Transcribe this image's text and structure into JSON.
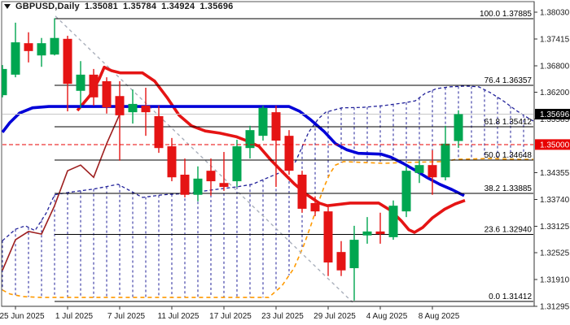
{
  "title": {
    "symbol_period": "GBPUSD,Daily",
    "open": "1.35081",
    "high": "1.35784",
    "low": "1.34924",
    "close": "1.35696"
  },
  "price_axis": {
    "labels": [
      "1.38030",
      "1.37415",
      "1.36800",
      "1.36200",
      "1.35585",
      "1.34355",
      "1.33740",
      "1.33125",
      "1.32525",
      "1.31910",
      "1.31295"
    ],
    "current_badge": {
      "text": "1.35696",
      "price": 1.35696
    },
    "alert_badge": {
      "text": "1.35000",
      "price": 1.35
    }
  },
  "time_axis": {
    "ticks": [
      {
        "label": "25 Jun 2025",
        "index": 1
      },
      {
        "label": "1 Jul 2025",
        "index": 5
      },
      {
        "label": "7 Jul 2025",
        "index": 9
      },
      {
        "label": "11 Jul 2025",
        "index": 13
      },
      {
        "label": "17 Jul 2025",
        "index": 17
      },
      {
        "label": "23 Jul 2025",
        "index": 21
      },
      {
        "label": "29 Jul 2025",
        "index": 25
      },
      {
        "label": "4 Aug 2025",
        "index": 29
      },
      {
        "label": "8 Aug 2025",
        "index": 33
      }
    ]
  },
  "fibonacci": {
    "levels": [
      {
        "level": "100.0",
        "price": 1.37885
      },
      {
        "level": "76.4",
        "price": 1.36357
      },
      {
        "level": "61.8",
        "price": 1.35412
      },
      {
        "level": "50.0",
        "price": 1.34648
      },
      {
        "level": "38.2",
        "price": 1.33885
      },
      {
        "level": "23.6",
        "price": 1.3294
      },
      {
        "level": "0.0",
        "price": 1.31412
      }
    ]
  },
  "colors": {
    "bull": "#00A650",
    "bear": "#E51414",
    "tenkan": "#E51414",
    "kijun": "#0000D8",
    "chikou": "#9E1F1F",
    "span_a": "#22229A",
    "span_b": "#FF9A00",
    "trendline": "#AAB0BC",
    "fib": "#000000",
    "alert": "#E80000",
    "current": "#C8C8C8",
    "badge_current_bg": "#000000",
    "badge_alert_bg": "#E80000",
    "axis_text": "#1a1a1a",
    "border": "#555555"
  },
  "chart_data": {
    "type": "candlestick",
    "symbol": "GBPUSD",
    "timeframe": "Daily",
    "ylim": [
      1.31295,
      1.3803
    ],
    "candles": [
      {
        "date": "24 Jun 2025",
        "o": 1.3613,
        "h": 1.3682,
        "l": 1.3608,
        "c": 1.3673
      },
      {
        "date": "25 Jun 2025",
        "o": 1.366,
        "h": 1.3779,
        "l": 1.3654,
        "c": 1.3734
      },
      {
        "date": "26 Jun 2025",
        "o": 1.3732,
        "h": 1.3757,
        "l": 1.3688,
        "c": 1.3714
      },
      {
        "date": "27 Jun 2025",
        "o": 1.3704,
        "h": 1.3744,
        "l": 1.3678,
        "c": 1.3732
      },
      {
        "date": "30 Jun 2025",
        "o": 1.3706,
        "h": 1.3789,
        "l": 1.3704,
        "c": 1.3744
      },
      {
        "date": "1 Jul 2025",
        "o": 1.3742,
        "h": 1.3749,
        "l": 1.3576,
        "c": 1.3639
      },
      {
        "date": "2 Jul 2025",
        "o": 1.3623,
        "h": 1.3691,
        "l": 1.3584,
        "c": 1.366
      },
      {
        "date": "3 Jul 2025",
        "o": 1.366,
        "h": 1.3673,
        "l": 1.3589,
        "c": 1.3608
      },
      {
        "date": "4 Jul 2025",
        "o": 1.3645,
        "h": 1.3654,
        "l": 1.3571,
        "c": 1.3585
      },
      {
        "date": "7 Jul 2025",
        "o": 1.3611,
        "h": 1.3645,
        "l": 1.3463,
        "c": 1.3567
      },
      {
        "date": "8 Jul 2025",
        "o": 1.3574,
        "h": 1.3626,
        "l": 1.3548,
        "c": 1.3593
      },
      {
        "date": "9 Jul 2025",
        "o": 1.3589,
        "h": 1.363,
        "l": 1.352,
        "c": 1.3574
      },
      {
        "date": "10 Jul 2025",
        "o": 1.3565,
        "h": 1.3589,
        "l": 1.3481,
        "c": 1.3492
      },
      {
        "date": "11 Jul 2025",
        "o": 1.3496,
        "h": 1.3515,
        "l": 1.3416,
        "c": 1.3425
      },
      {
        "date": "14 Jul 2025",
        "o": 1.3431,
        "h": 1.3468,
        "l": 1.3379,
        "c": 1.3385
      },
      {
        "date": "15 Jul 2025",
        "o": 1.3385,
        "h": 1.345,
        "l": 1.337,
        "c": 1.3422
      },
      {
        "date": "16 Jul 2025",
        "o": 1.344,
        "h": 1.3468,
        "l": 1.3383,
        "c": 1.3416
      },
      {
        "date": "17 Jul 2025",
        "o": 1.3412,
        "h": 1.3483,
        "l": 1.3394,
        "c": 1.3403
      },
      {
        "date": "18 Jul 2025",
        "o": 1.3416,
        "h": 1.3511,
        "l": 1.3403,
        "c": 1.3496
      },
      {
        "date": "21 Jul 2025",
        "o": 1.3492,
        "h": 1.3543,
        "l": 1.3468,
        "c": 1.3533
      },
      {
        "date": "22 Jul 2025",
        "o": 1.352,
        "h": 1.3589,
        "l": 1.3509,
        "c": 1.3584
      },
      {
        "date": "23 Jul 2025",
        "o": 1.3574,
        "h": 1.3589,
        "l": 1.3403,
        "c": 1.3509
      },
      {
        "date": "24 Jul 2025",
        "o": 1.352,
        "h": 1.3533,
        "l": 1.3431,
        "c": 1.344
      },
      {
        "date": "25 Jul 2025",
        "o": 1.3431,
        "h": 1.344,
        "l": 1.3344,
        "c": 1.3353
      },
      {
        "date": "28 Jul 2025",
        "o": 1.3366,
        "h": 1.3381,
        "l": 1.3336,
        "c": 1.3347
      },
      {
        "date": "29 Jul 2025",
        "o": 1.3347,
        "h": 1.3357,
        "l": 1.3199,
        "c": 1.323
      },
      {
        "date": "30 Jul 2025",
        "o": 1.3254,
        "h": 1.3279,
        "l": 1.3199,
        "c": 1.3212
      },
      {
        "date": "31 Jul 2025",
        "o": 1.3217,
        "h": 1.3314,
        "l": 1.3143,
        "c": 1.3282
      },
      {
        "date": "1 Aug 2025",
        "o": 1.3292,
        "h": 1.3334,
        "l": 1.3273,
        "c": 1.3301
      },
      {
        "date": "4 Aug 2025",
        "o": 1.3301,
        "h": 1.3344,
        "l": 1.3273,
        "c": 1.3295
      },
      {
        "date": "5 Aug 2025",
        "o": 1.3288,
        "h": 1.3372,
        "l": 1.3282,
        "c": 1.336
      },
      {
        "date": "6 Aug 2025",
        "o": 1.3347,
        "h": 1.345,
        "l": 1.3334,
        "c": 1.344
      },
      {
        "date": "7 Aug 2025",
        "o": 1.3435,
        "h": 1.3463,
        "l": 1.3412,
        "c": 1.3453
      },
      {
        "date": "8 Aug 2025",
        "o": 1.3453,
        "h": 1.3487,
        "l": 1.3385,
        "c": 1.3425
      },
      {
        "date": "11 Aug 2025",
        "o": 1.3425,
        "h": 1.3543,
        "l": 1.3418,
        "c": 1.3502
      },
      {
        "date": "12 Aug 2025",
        "o": 1.35081,
        "h": 1.35784,
        "l": 1.34924,
        "c": 1.35696
      }
    ],
    "indicators": {
      "tenkan_sen": [
        [
          95,
          1.3578
        ],
        [
          110,
          1.3611
        ],
        [
          122,
          1.3651
        ],
        [
          128,
          1.3677
        ],
        [
          137,
          1.3669
        ],
        [
          148,
          1.3664
        ],
        [
          175,
          1.3664
        ],
        [
          190,
          1.3645
        ],
        [
          205,
          1.3608
        ],
        [
          220,
          1.3567
        ],
        [
          235,
          1.3543
        ],
        [
          252,
          1.3531
        ],
        [
          270,
          1.3526
        ],
        [
          290,
          1.3518
        ],
        [
          305,
          1.3507
        ],
        [
          318,
          1.3496
        ],
        [
          332,
          1.3466
        ],
        [
          347,
          1.3437
        ],
        [
          362,
          1.3409
        ],
        [
          377,
          1.3385
        ],
        [
          392,
          1.3366
        ],
        [
          402,
          1.336
        ],
        [
          430,
          1.3366
        ],
        [
          465,
          1.3366
        ],
        [
          480,
          1.3349
        ],
        [
          493,
          1.3325
        ],
        [
          502,
          1.3305
        ],
        [
          509,
          1.3299
        ],
        [
          519,
          1.331
        ],
        [
          531,
          1.3332
        ],
        [
          546,
          1.3352
        ],
        [
          559,
          1.3364
        ],
        [
          571,
          1.3372
        ]
      ],
      "kijun_sen": [
        [
          3,
          1.3528
        ],
        [
          12,
          1.355
        ],
        [
          24,
          1.3572
        ],
        [
          40,
          1.3584
        ],
        [
          60,
          1.3587
        ],
        [
          200,
          1.3587
        ],
        [
          355,
          1.3587
        ],
        [
          368,
          1.3576
        ],
        [
          382,
          1.3556
        ],
        [
          398,
          1.353
        ],
        [
          412,
          1.3502
        ],
        [
          426,
          1.3488
        ],
        [
          440,
          1.348
        ],
        [
          468,
          1.3478
        ],
        [
          480,
          1.3471
        ],
        [
          495,
          1.3457
        ],
        [
          510,
          1.3441
        ],
        [
          525,
          1.3424
        ],
        [
          540,
          1.3409
        ],
        [
          555,
          1.3397
        ],
        [
          570,
          1.3383
        ]
      ],
      "senkou_span_a": [
        [
          3,
          1.328
        ],
        [
          19,
          1.3306
        ],
        [
          31,
          1.3314
        ],
        [
          43,
          1.3303
        ],
        [
          57,
          1.3344
        ],
        [
          67,
          1.3385
        ],
        [
          90,
          1.3392
        ],
        [
          115,
          1.3398
        ],
        [
          145,
          1.3409
        ],
        [
          175,
          1.3379
        ],
        [
          200,
          1.3385
        ],
        [
          230,
          1.3388
        ],
        [
          260,
          1.3396
        ],
        [
          290,
          1.3403
        ],
        [
          310,
          1.3409
        ],
        [
          330,
          1.3425
        ],
        [
          347,
          1.3438
        ],
        [
          363,
          1.3461
        ],
        [
          379,
          1.3528
        ],
        [
          391,
          1.3559
        ],
        [
          400,
          1.3574
        ],
        [
          420,
          1.3584
        ],
        [
          445,
          1.3585
        ],
        [
          470,
          1.3589
        ],
        [
          495,
          1.3595
        ],
        [
          510,
          1.36
        ],
        [
          522,
          1.3617
        ],
        [
          536,
          1.3628
        ],
        [
          552,
          1.3632
        ],
        [
          572,
          1.3634
        ],
        [
          588,
          1.3632
        ],
        [
          602,
          1.3619
        ],
        [
          618,
          1.36
        ],
        [
          634,
          1.3578
        ],
        [
          650,
          1.3559
        ],
        [
          655,
          1.3554
        ]
      ],
      "senkou_span_b": [
        [
          3,
          1.3167
        ],
        [
          12,
          1.3158
        ],
        [
          28,
          1.3152
        ],
        [
          50,
          1.315
        ],
        [
          330,
          1.315
        ],
        [
          346,
          1.3176
        ],
        [
          361,
          1.3217
        ],
        [
          373,
          1.3269
        ],
        [
          382,
          1.3316
        ],
        [
          390,
          1.3362
        ],
        [
          398,
          1.3403
        ],
        [
          405,
          1.3433
        ],
        [
          412,
          1.3453
        ],
        [
          422,
          1.3461
        ],
        [
          445,
          1.3459
        ],
        [
          470,
          1.3457
        ],
        [
          500,
          1.3459
        ],
        [
          545,
          1.3461
        ],
        [
          560,
          1.3466
        ],
        [
          600,
          1.3468
        ],
        [
          640,
          1.3466
        ],
        [
          655,
          1.3466
        ]
      ],
      "chikou_shift_bars": 26,
      "trendline": [
        [
          68,
          1.3794
        ],
        [
          433,
          1.3139
        ]
      ]
    }
  }
}
